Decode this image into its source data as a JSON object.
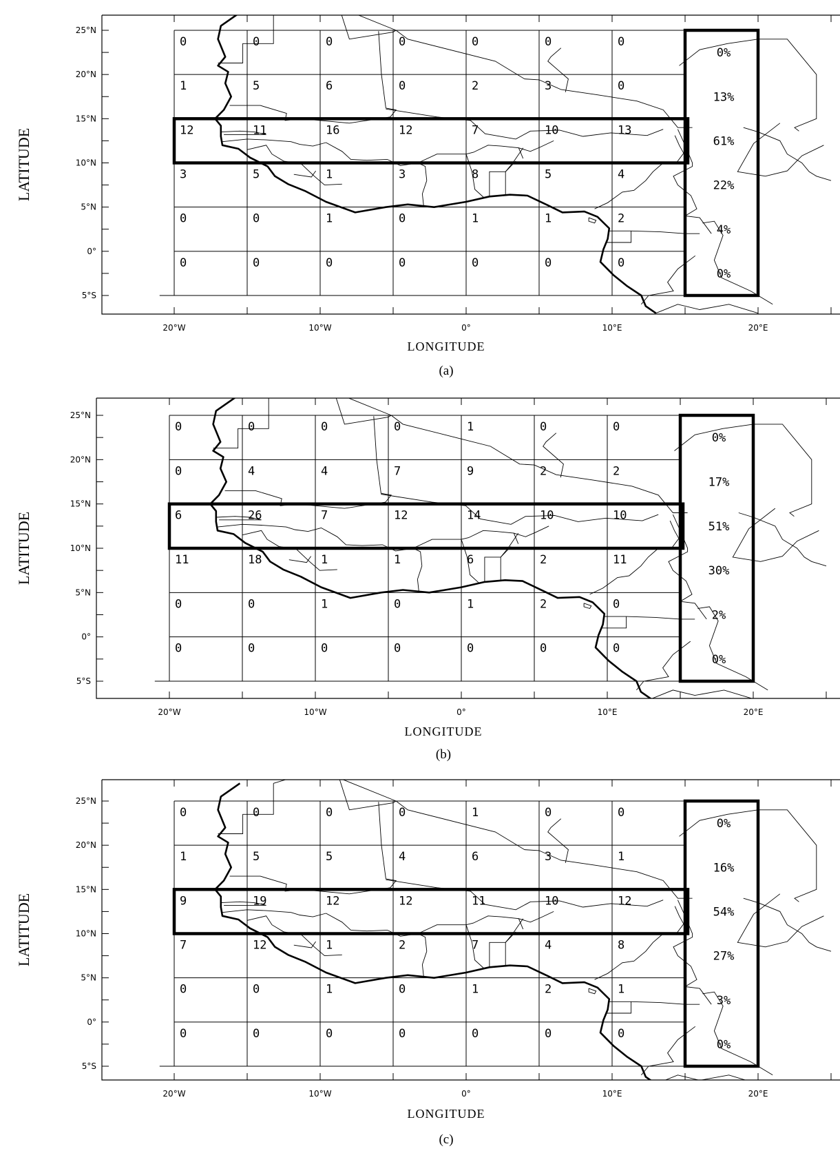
{
  "axis": {
    "xlabel": "LONGITUDE",
    "ylabel": "LATITUDE",
    "lon_ticks": [
      "20°W",
      "10°W",
      "0°",
      "10°E",
      "20°E"
    ],
    "lat_ticks": [
      "25°N",
      "20°N",
      "15°N",
      "10°N",
      "5°N",
      "0°",
      "5°S"
    ]
  },
  "panels": [
    {
      "caption": "(a)",
      "grid_rows": [
        [
          "0",
          "0",
          "0",
          "0",
          "0",
          "0",
          "0"
        ],
        [
          "1",
          "5",
          "6",
          "0",
          "2",
          "3",
          "0"
        ],
        [
          "12",
          "11",
          "16",
          "12",
          "7",
          "10",
          "13"
        ],
        [
          "3",
          "5",
          "1",
          "3",
          "8",
          "5",
          "4"
        ],
        [
          "0",
          "0",
          "1",
          "0",
          "1",
          "1",
          "2"
        ],
        [
          "0",
          "0",
          "0",
          "0",
          "0",
          "0",
          "0"
        ]
      ],
      "row_percent": [
        "0%",
        "13%",
        "61%",
        "22%",
        "4%",
        "0%"
      ]
    },
    {
      "caption": "(b)",
      "grid_rows": [
        [
          "0",
          "0",
          "0",
          "0",
          "1",
          "0",
          "0"
        ],
        [
          "0",
          "4",
          "4",
          "7",
          "9",
          "2",
          "2"
        ],
        [
          "6",
          "26",
          "7",
          "12",
          "14",
          "10",
          "10"
        ],
        [
          "11",
          "18",
          "1",
          "1",
          "6",
          "2",
          "11"
        ],
        [
          "0",
          "0",
          "1",
          "0",
          "1",
          "2",
          "0"
        ],
        [
          "0",
          "0",
          "0",
          "0",
          "0",
          "0",
          "0"
        ]
      ],
      "row_percent": [
        "0%",
        "17%",
        "51%",
        "30%",
        "2%",
        "0%"
      ]
    },
    {
      "caption": "(c)",
      "grid_rows": [
        [
          "0",
          "0",
          "0",
          "0",
          "1",
          "0",
          "0"
        ],
        [
          "1",
          "5",
          "5",
          "4",
          "6",
          "3",
          "1"
        ],
        [
          "9",
          "19",
          "12",
          "12",
          "11",
          "10",
          "12"
        ],
        [
          "7",
          "12",
          "1",
          "2",
          "7",
          "4",
          "8"
        ],
        [
          "0",
          "0",
          "1",
          "0",
          "1",
          "2",
          "1"
        ],
        [
          "0",
          "0",
          "0",
          "0",
          "0",
          "0",
          "0"
        ]
      ],
      "row_percent": [
        "0%",
        "16%",
        "54%",
        "27%",
        "3%",
        "0%"
      ]
    }
  ]
}
